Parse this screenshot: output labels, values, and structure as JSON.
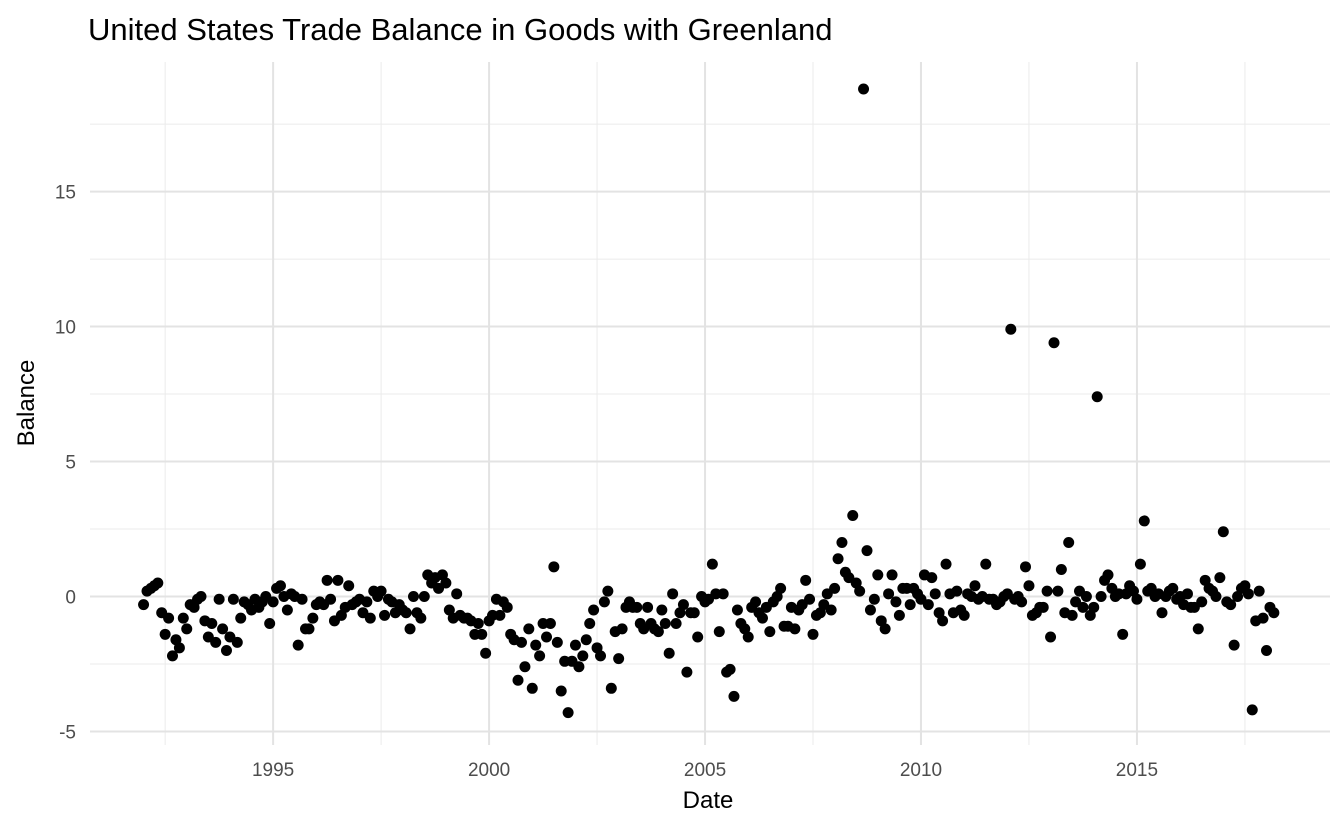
{
  "chart_data": {
    "type": "scatter",
    "title": "United States Trade Balance in Goods with Greenland",
    "x_label": "Date",
    "y_label": "Balance",
    "color": "#000000",
    "grid": true,
    "xlim": [
      1990.76,
      2019.47
    ],
    "ylim": [
      -5.5,
      19.8
    ],
    "xticks": [
      1995,
      2000,
      2005,
      2010,
      2015
    ],
    "yticks": [
      -5,
      0,
      5,
      10,
      15
    ],
    "x": [
      1992.0,
      1992.08,
      1992.17,
      1992.25,
      1992.33,
      1992.42,
      1992.5,
      1992.58,
      1992.67,
      1992.75,
      1992.83,
      1992.92,
      1993.0,
      1993.08,
      1993.17,
      1993.25,
      1993.33,
      1993.42,
      1993.5,
      1993.58,
      1993.67,
      1993.75,
      1993.83,
      1993.92,
      1994.0,
      1994.08,
      1994.17,
      1994.25,
      1994.33,
      1994.42,
      1994.5,
      1994.58,
      1994.67,
      1994.75,
      1994.83,
      1994.92,
      1995.0,
      1995.08,
      1995.17,
      1995.25,
      1995.33,
      1995.42,
      1995.5,
      1995.58,
      1995.67,
      1995.75,
      1995.83,
      1995.92,
      1996.0,
      1996.08,
      1996.17,
      1996.25,
      1996.33,
      1996.42,
      1996.5,
      1996.58,
      1996.67,
      1996.75,
      1996.83,
      1996.92,
      1997.0,
      1997.08,
      1997.17,
      1997.25,
      1997.33,
      1997.42,
      1997.5,
      1997.58,
      1997.67,
      1997.75,
      1997.83,
      1997.92,
      1998.0,
      1998.08,
      1998.17,
      1998.25,
      1998.33,
      1998.42,
      1998.5,
      1998.58,
      1998.67,
      1998.75,
      1998.83,
      1998.92,
      1999.0,
      1999.08,
      1999.17,
      1999.25,
      1999.33,
      1999.42,
      1999.5,
      1999.58,
      1999.67,
      1999.75,
      1999.83,
      1999.92,
      2000.0,
      2000.08,
      2000.17,
      2000.25,
      2000.33,
      2000.42,
      2000.5,
      2000.58,
      2000.67,
      2000.75,
      2000.83,
      2000.92,
      2001.0,
      2001.08,
      2001.17,
      2001.25,
      2001.33,
      2001.42,
      2001.5,
      2001.58,
      2001.67,
      2001.75,
      2001.83,
      2001.92,
      2002.0,
      2002.08,
      2002.17,
      2002.25,
      2002.33,
      2002.42,
      2002.5,
      2002.58,
      2002.67,
      2002.75,
      2002.83,
      2002.92,
      2003.0,
      2003.08,
      2003.17,
      2003.25,
      2003.33,
      2003.42,
      2003.5,
      2003.58,
      2003.67,
      2003.75,
      2003.83,
      2003.92,
      2004.0,
      2004.08,
      2004.17,
      2004.25,
      2004.33,
      2004.42,
      2004.5,
      2004.58,
      2004.67,
      2004.75,
      2004.83,
      2004.92,
      2005.0,
      2005.08,
      2005.17,
      2005.25,
      2005.33,
      2005.42,
      2005.5,
      2005.58,
      2005.67,
      2005.75,
      2005.83,
      2005.92,
      2006.0,
      2006.08,
      2006.17,
      2006.25,
      2006.33,
      2006.42,
      2006.5,
      2006.58,
      2006.67,
      2006.75,
      2006.83,
      2006.92,
      2007.0,
      2007.08,
      2007.17,
      2007.25,
      2007.33,
      2007.42,
      2007.5,
      2007.58,
      2007.67,
      2007.75,
      2007.83,
      2007.92,
      2008.0,
      2008.08,
      2008.17,
      2008.25,
      2008.33,
      2008.42,
      2008.5,
      2008.58,
      2008.67,
      2008.75,
      2008.83,
      2008.92,
      2009.0,
      2009.08,
      2009.17,
      2009.25,
      2009.33,
      2009.42,
      2009.5,
      2009.58,
      2009.67,
      2009.75,
      2009.83,
      2009.92,
      2010.0,
      2010.08,
      2010.17,
      2010.25,
      2010.33,
      2010.42,
      2010.5,
      2010.58,
      2010.67,
      2010.75,
      2010.83,
      2010.92,
      2011.0,
      2011.08,
      2011.17,
      2011.25,
      2011.33,
      2011.42,
      2011.5,
      2011.58,
      2011.67,
      2011.75,
      2011.83,
      2011.92,
      2012.0,
      2012.08,
      2012.17,
      2012.25,
      2012.33,
      2012.42,
      2012.5,
      2012.58,
      2012.67,
      2012.75,
      2012.83,
      2012.92,
      2013.0,
      2013.08,
      2013.17,
      2013.25,
      2013.33,
      2013.42,
      2013.5,
      2013.58,
      2013.67,
      2013.75,
      2013.83,
      2013.92,
      2014.0,
      2014.08,
      2014.17,
      2014.25,
      2014.33,
      2014.42,
      2014.5,
      2014.58,
      2014.67,
      2014.75,
      2014.83,
      2014.92,
      2015.0,
      2015.08,
      2015.17,
      2015.25,
      2015.33,
      2015.42,
      2015.5,
      2015.58,
      2015.67,
      2015.75,
      2015.83,
      2015.92,
      2016.0,
      2016.08,
      2016.17,
      2016.25,
      2016.33,
      2016.42,
      2016.5,
      2016.58,
      2016.67,
      2016.75,
      2016.83,
      2016.92,
      2017.0,
      2017.08,
      2017.17,
      2017.25,
      2017.33,
      2017.42,
      2017.5,
      2017.58,
      2017.67,
      2017.75,
      2017.83,
      2017.92,
      2018.0,
      2018.08,
      2018.17
    ],
    "values": [
      -0.3,
      0.2,
      0.3,
      0.4,
      0.5,
      -0.6,
      -1.4,
      -0.8,
      -2.2,
      -1.6,
      -1.9,
      -0.8,
      -1.2,
      -0.3,
      -0.4,
      -0.1,
      0.0,
      -0.9,
      -1.5,
      -1.0,
      -1.7,
      -0.1,
      -1.2,
      -2.0,
      -1.5,
      -0.1,
      -1.7,
      -0.8,
      -0.2,
      -0.3,
      -0.5,
      -0.1,
      -0.4,
      -0.2,
      0.0,
      -1.0,
      -0.2,
      0.3,
      0.4,
      0.0,
      -0.5,
      0.1,
      0.0,
      -1.8,
      -0.1,
      -1.2,
      -1.2,
      -0.8,
      -0.3,
      -0.2,
      -0.3,
      0.6,
      -0.1,
      -0.9,
      0.6,
      -0.7,
      -0.4,
      0.4,
      -0.3,
      -0.2,
      -0.1,
      -0.6,
      -0.2,
      -0.8,
      0.2,
      0.0,
      0.2,
      -0.7,
      -0.1,
      -0.2,
      -0.6,
      -0.3,
      -0.5,
      -0.6,
      -1.2,
      0.0,
      -0.6,
      -0.8,
      0.0,
      0.8,
      0.5,
      0.7,
      0.3,
      0.8,
      0.5,
      -0.5,
      -0.8,
      0.1,
      -0.7,
      -0.8,
      -0.8,
      -0.9,
      -1.4,
      -1.0,
      -1.4,
      -2.1,
      -0.9,
      -0.7,
      -0.1,
      -0.7,
      -0.2,
      -0.4,
      -1.4,
      -1.6,
      -3.1,
      -1.7,
      -2.6,
      -1.2,
      -3.4,
      -1.8,
      -2.2,
      -1.0,
      -1.5,
      -1.0,
      1.1,
      -1.7,
      -3.5,
      -2.4,
      -4.3,
      -2.4,
      -1.8,
      -2.6,
      -2.2,
      -1.6,
      -1.0,
      -0.5,
      -1.9,
      -2.2,
      -0.2,
      0.2,
      -3.4,
      -1.3,
      -2.3,
      -1.2,
      -0.4,
      -0.2,
      -0.4,
      -0.4,
      -1.0,
      -1.2,
      -0.4,
      -1.0,
      -1.2,
      -1.3,
      -0.5,
      -1.0,
      -2.1,
      0.1,
      -1.0,
      -0.6,
      -0.3,
      -2.8,
      -0.6,
      -0.6,
      -1.5,
      0.0,
      -0.2,
      -0.1,
      1.2,
      0.1,
      -1.3,
      0.1,
      -2.8,
      -2.7,
      -3.7,
      -0.5,
      -1.0,
      -1.2,
      -1.5,
      -0.4,
      -0.2,
      -0.6,
      -0.8,
      -0.4,
      -1.3,
      -0.2,
      0.0,
      0.3,
      -1.1,
      -1.1,
      -0.4,
      -1.2,
      -0.5,
      -0.3,
      0.6,
      -0.1,
      -1.4,
      -0.7,
      -0.6,
      -0.3,
      0.1,
      -0.5,
      0.3,
      1.4,
      2.0,
      0.9,
      0.7,
      3.0,
      0.5,
      0.2,
      18.8,
      1.7,
      -0.5,
      -0.1,
      0.8,
      -0.9,
      -1.2,
      0.1,
      0.8,
      -0.2,
      -0.7,
      0.3,
      0.3,
      -0.3,
      0.3,
      0.1,
      -0.1,
      0.8,
      -0.3,
      0.7,
      0.1,
      -0.6,
      -0.9,
      1.2,
      0.1,
      -0.6,
      0.2,
      -0.5,
      -0.7,
      0.1,
      0.0,
      0.4,
      -0.1,
      0.0,
      1.2,
      -0.1,
      -0.1,
      -0.3,
      -0.2,
      0.0,
      0.1,
      9.9,
      -0.1,
      0.0,
      -0.2,
      1.1,
      0.4,
      -0.7,
      -0.6,
      -0.4,
      -0.4,
      0.2,
      -1.5,
      9.4,
      0.2,
      1.0,
      -0.6,
      2.0,
      -0.7,
      -0.2,
      0.2,
      -0.4,
      0.0,
      -0.7,
      -0.4,
      7.4,
      0.0,
      0.6,
      0.8,
      0.3,
      0.0,
      0.1,
      -1.4,
      0.1,
      0.4,
      0.2,
      -0.1,
      1.2,
      2.8,
      0.2,
      0.3,
      0.0,
      0.1,
      -0.6,
      0.0,
      0.2,
      0.3,
      -0.1,
      0.0,
      -0.3,
      0.1,
      -0.4,
      -0.4,
      -1.2,
      -0.2,
      0.6,
      0.3,
      0.2,
      0.0,
      0.7,
      2.4,
      -0.2,
      -0.3,
      -1.8,
      0.0,
      0.3,
      0.4,
      0.1,
      -4.2,
      -0.9,
      0.2,
      -0.8,
      -2.0,
      -0.4,
      -0.6
    ]
  }
}
